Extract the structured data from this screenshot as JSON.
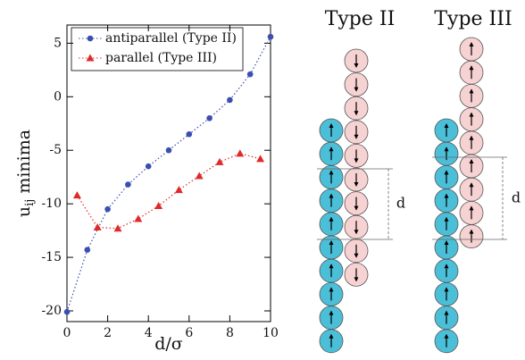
{
  "chart_data": {
    "type": "line",
    "xlabel": "d/σ",
    "ylabel": {
      "main": "u",
      "sub": "ij",
      "rest": "minima"
    },
    "xlim": [
      0,
      10
    ],
    "xticks": [
      0,
      2,
      4,
      6,
      8,
      10
    ],
    "ylim": [
      -21,
      6.7
    ],
    "yticks": [
      -20,
      -15,
      -10,
      -5,
      0,
      5
    ],
    "legend": "top-left",
    "series": [
      {
        "name": "antiparallel (Type II)",
        "color": "#3a4fb0",
        "marker": "circle",
        "x": [
          0,
          1,
          2,
          3,
          4,
          5,
          6,
          7,
          8,
          9,
          10
        ],
        "values": [
          -20.1,
          -14.3,
          -10.5,
          -8.2,
          -6.5,
          -5.0,
          -3.5,
          -2.0,
          -0.3,
          2.1,
          5.6
        ]
      },
      {
        "name": "parallel (Type III)",
        "color": "#e02a2a",
        "marker": "triangle",
        "x": [
          0.5,
          1.5,
          2.5,
          3.5,
          4.5,
          5.5,
          6.5,
          7.5,
          8.5,
          9.5
        ],
        "values": [
          -9.2,
          -12.2,
          -12.3,
          -11.4,
          -10.2,
          -8.7,
          -7.4,
          -6.1,
          -5.3,
          -5.8
        ]
      }
    ]
  },
  "diagram": {
    "type2": {
      "title": "Type II",
      "distance": "d"
    },
    "type3": {
      "title": "Type III",
      "distance": "d"
    }
  }
}
